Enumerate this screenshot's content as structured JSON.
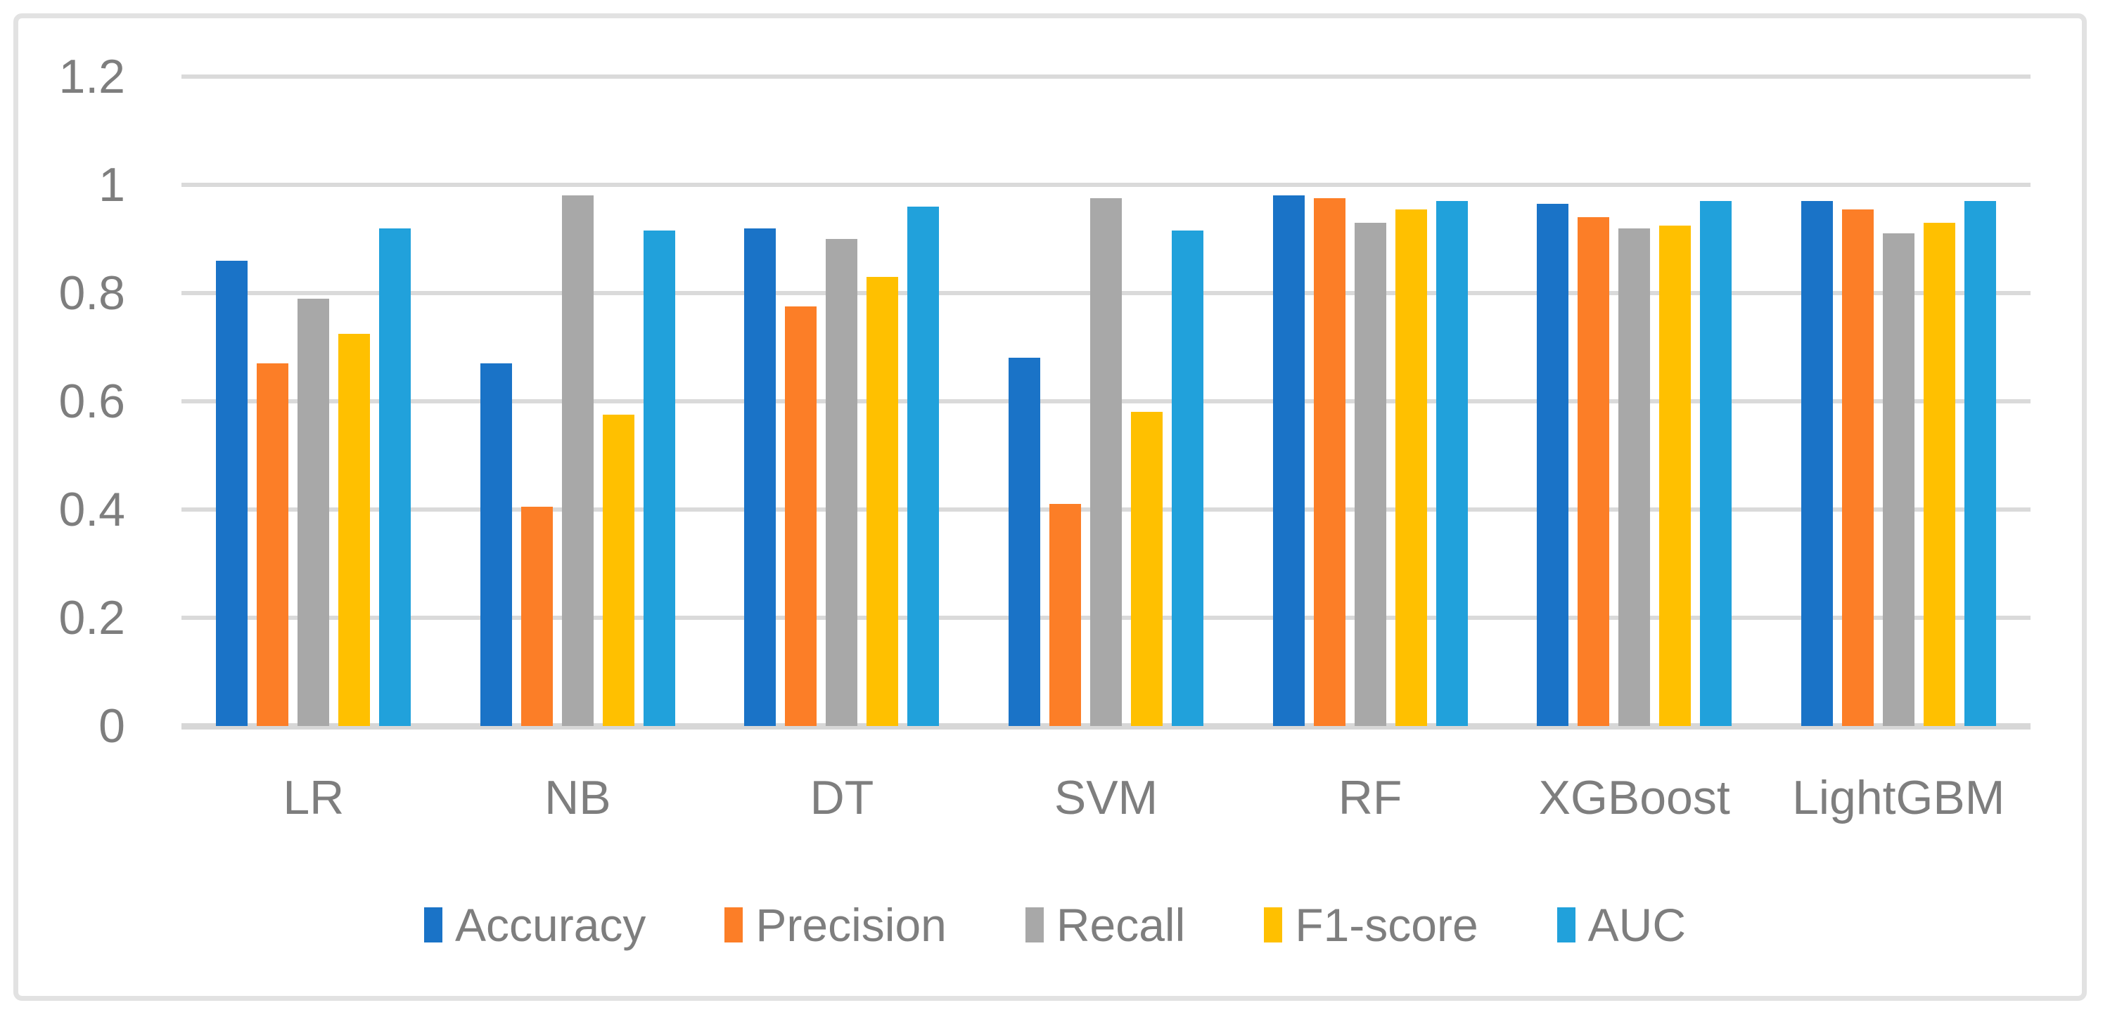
{
  "figure": {
    "background": "#ffffff",
    "border_color": "#E2E2E2",
    "gridline_color": "#DADADA",
    "axis_line_color": "#D7D7D7",
    "text_color": "#7E7E7E"
  },
  "chart_data": {
    "type": "bar",
    "title": "",
    "xlabel": "",
    "ylabel": "",
    "ylim": [
      0,
      1.2
    ],
    "grid": true,
    "legend_position": "bottom",
    "y_ticks": [
      {
        "value": 0,
        "label": "0"
      },
      {
        "value": 0.2,
        "label": "0.2"
      },
      {
        "value": 0.4,
        "label": "0.4"
      },
      {
        "value": 0.6,
        "label": "0.6"
      },
      {
        "value": 0.8,
        "label": "0.8"
      },
      {
        "value": 1,
        "label": "1"
      },
      {
        "value": 1.2,
        "label": "1.2"
      }
    ],
    "categories": [
      "LR",
      "NB",
      "DT",
      "SVM",
      "RF",
      "XGBoost",
      "LightGBM"
    ],
    "series": [
      {
        "name": "Accuracy",
        "color": "#1A73C7",
        "values": [
          0.86,
          0.67,
          0.92,
          0.68,
          0.98,
          0.965,
          0.97
        ]
      },
      {
        "name": "Precision",
        "color": "#FC7E27",
        "values": [
          0.67,
          0.405,
          0.775,
          0.41,
          0.975,
          0.94,
          0.955
        ]
      },
      {
        "name": "Recall",
        "color": "#A8A8A8",
        "values": [
          0.79,
          0.98,
          0.9,
          0.975,
          0.93,
          0.92,
          0.91
        ]
      },
      {
        "name": "F1-score",
        "color": "#FFC000",
        "values": [
          0.725,
          0.575,
          0.83,
          0.58,
          0.955,
          0.925,
          0.93
        ]
      },
      {
        "name": "AUC",
        "color": "#21A1DB",
        "values": [
          0.92,
          0.915,
          0.96,
          0.915,
          0.97,
          0.97,
          0.97
        ]
      }
    ]
  }
}
